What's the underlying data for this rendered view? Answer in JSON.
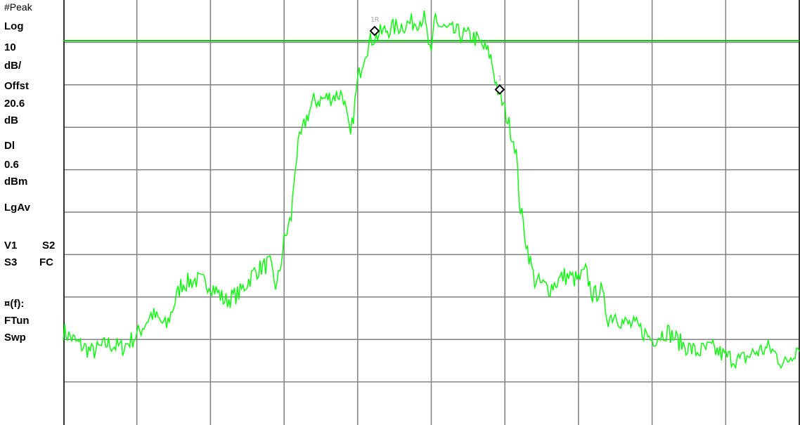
{
  "side_panel": {
    "detector": "#Peak",
    "scale_type": "Log",
    "scale_value": "10",
    "scale_unit": "dB/",
    "offset_label": "Offst",
    "offset_value": "20.6",
    "offset_unit": "dB",
    "display_line_label": "Dl",
    "display_line_value": "0.6",
    "display_line_unit": "dBm",
    "avg_mode": "LgAv",
    "trace_row1_a": "V1",
    "trace_row1_b": "S2",
    "trace_row2_a": "S3",
    "trace_row2_b": "FC",
    "func_label": "¤(f):",
    "func_value1": "FTun",
    "func_value2": "Swp"
  },
  "markers": [
    {
      "label": "1R",
      "x": 0.423
    },
    {
      "label": "1",
      "x": 0.593
    }
  ],
  "colors": {
    "trace": "#00ff00",
    "display_line": "#00cc00",
    "grid": "#808080",
    "background": "#ffffff",
    "text": "#000000"
  },
  "chart_data": {
    "type": "line",
    "grid": {
      "x_divisions": 10,
      "y_divisions": 10
    },
    "display_line_div": 9.04,
    "series": [
      {
        "x": [
          0,
          0.02,
          0.04,
          0.06,
          0.08,
          0.1,
          0.12,
          0.14,
          0.16,
          0.18,
          0.2,
          0.22,
          0.24,
          0.26,
          0.28,
          0.29,
          0.3,
          0.31,
          0.315,
          0.32,
          0.33,
          0.34,
          0.36,
          0.38,
          0.39,
          0.4,
          0.41,
          0.42,
          0.44,
          0.46,
          0.48,
          0.49,
          0.5,
          0.505,
          0.51,
          0.52,
          0.54,
          0.56,
          0.58,
          0.59,
          0.6,
          0.61,
          0.615,
          0.62,
          0.63,
          0.64,
          0.66,
          0.68,
          0.7,
          0.71,
          0.72,
          0.73,
          0.74,
          0.75,
          0.76,
          0.78,
          0.8,
          0.82,
          0.84,
          0.86,
          0.88,
          0.9,
          0.92,
          0.94,
          0.96,
          0.98,
          1.0
        ],
        "y": [
          2.2,
          1.9,
          1.7,
          1.9,
          1.8,
          2.1,
          2.6,
          2.3,
          3.3,
          3.4,
          3.3,
          2.9,
          3.1,
          3.6,
          3.8,
          3.2,
          4.3,
          4.9,
          6.1,
          6.6,
          7.2,
          7.6,
          7.7,
          7.8,
          6.7,
          8.1,
          8.8,
          9.1,
          9.3,
          9.4,
          9.5,
          9.6,
          8.6,
          9.7,
          9.4,
          9.3,
          9.2,
          9.1,
          8.7,
          7.9,
          7.4,
          6.8,
          6.5,
          5.2,
          4.2,
          3.4,
          3.2,
          3.5,
          3.4,
          3.6,
          3.0,
          3.2,
          2.5,
          2.6,
          2.4,
          2.3,
          2.0,
          2.2,
          1.9,
          1.7,
          1.8,
          1.6,
          1.5,
          1.7,
          1.8,
          1.4,
          1.9
        ]
      }
    ]
  }
}
